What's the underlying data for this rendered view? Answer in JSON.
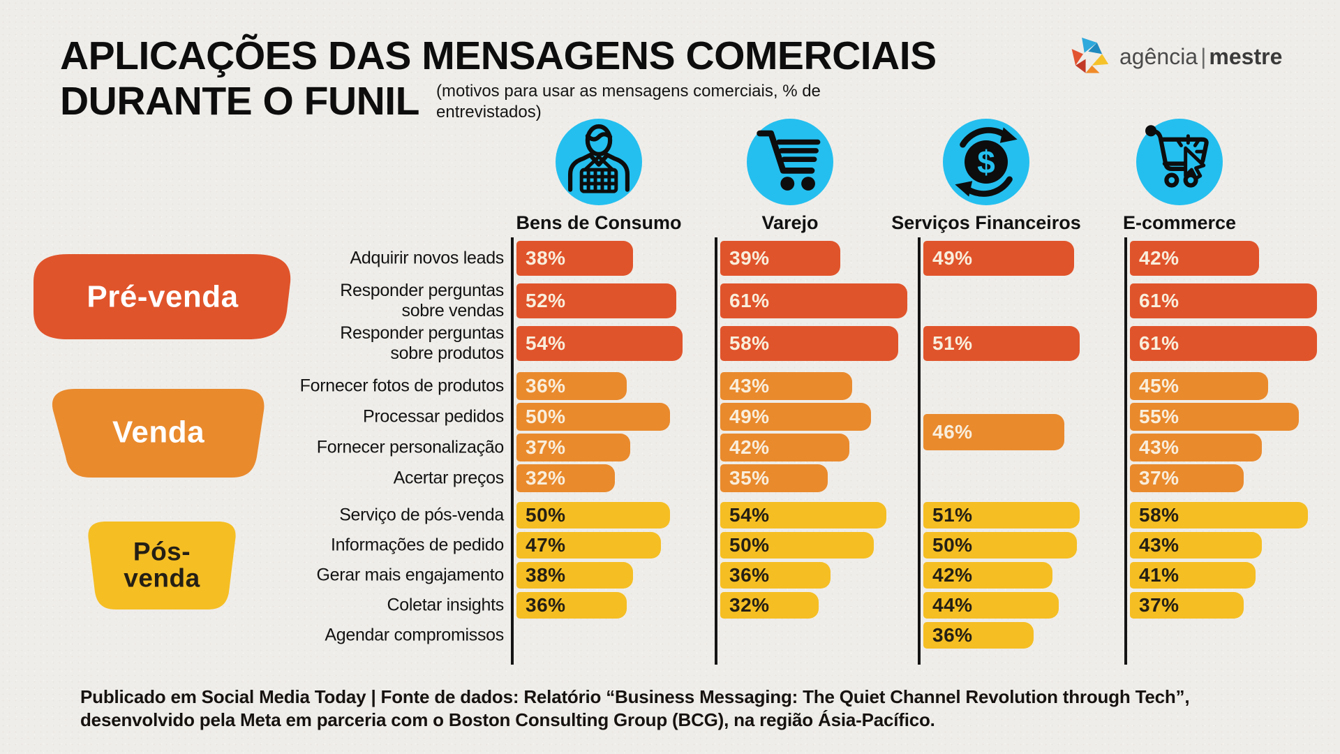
{
  "header": {
    "title_line1": "APLICAÇÕES DAS MENSAGENS COMERCIAIS",
    "title_line2": "DURANTE O FUNIL",
    "subtitle": "(motivos para usar as mensagens comerciais, % de entrevistados)"
  },
  "logo": {
    "name_regular": "agência",
    "separator": "|",
    "name_bold": "mestre"
  },
  "footer": {
    "line1": "Publicado em Social Media Today | Fonte de dados: Relatório “Business Messaging: The Quiet Channel Revolution through Tech”,",
    "line2": "desenvolvido pela Meta em parceria com o Boston Consulting Group (BCG), na região Ásia-Pacífico."
  },
  "colors": {
    "background": "#EFEDE9",
    "pre_venda": "#E0542B",
    "venda": "#E98A2D",
    "pos_venda": "#F5BE23",
    "icon_circle": "#24BFEF",
    "axis": "#141414",
    "title_text": "#0D0D0D"
  },
  "chart_data": {
    "type": "bar",
    "orientation": "horizontal",
    "unit": "%",
    "value_range": [
      0,
      100
    ],
    "categories": [
      {
        "label": "Bens de Consumo",
        "icon": "person-basket-icon"
      },
      {
        "label": "Varejo",
        "icon": "shopping-cart-icon"
      },
      {
        "label": "Serviços Financeiros",
        "icon": "dollar-cycle-icon"
      },
      {
        "label": "E-commerce",
        "icon": "cart-click-icon"
      }
    ],
    "sections": [
      {
        "id": "pre",
        "label": "Pré-venda",
        "label_lines": [
          "Pré-venda"
        ],
        "color": "#E0542B",
        "text_color": "#FFFFFF",
        "value_text_color": "#F9EEDC"
      },
      {
        "id": "venda",
        "label": "Venda",
        "label_lines": [
          "Venda"
        ],
        "color": "#E98A2D",
        "text_color": "#FFFFFF",
        "value_text_color": "#F9EEDC"
      },
      {
        "id": "pos",
        "label": "Pós-venda",
        "label_lines": [
          "Pós-",
          "venda"
        ],
        "color": "#F5BE23",
        "text_color": "#241F15",
        "value_text_color": "#241F15"
      }
    ],
    "rows": [
      {
        "label_lines": [
          "Adquirir novos leads"
        ],
        "section": "pre",
        "values": [
          38,
          39,
          49,
          42
        ]
      },
      {
        "label_lines": [
          "Responder perguntas",
          "sobre vendas"
        ],
        "section": "pre",
        "values": [
          52,
          61,
          null,
          61
        ]
      },
      {
        "label_lines": [
          "Responder perguntas",
          "sobre produtos"
        ],
        "section": "pre",
        "values": [
          54,
          58,
          51,
          61
        ]
      },
      {
        "label_lines": [
          "Fornecer fotos de produtos"
        ],
        "section": "venda",
        "values": [
          36,
          43,
          null,
          45
        ]
      },
      {
        "label_lines": [
          "Processar pedidos"
        ],
        "section": "venda",
        "values": [
          50,
          49,
          null,
          55
        ]
      },
      {
        "label_lines": [
          "Fornecer personalização"
        ],
        "section": "venda",
        "values": [
          37,
          42,
          null,
          43
        ]
      },
      {
        "label_lines": [
          "Acertar preços"
        ],
        "section": "venda",
        "values": [
          32,
          35,
          null,
          37
        ]
      },
      {
        "label_lines": [
          "Serviço de pós-venda"
        ],
        "section": "pos",
        "values": [
          50,
          54,
          51,
          58
        ]
      },
      {
        "label_lines": [
          "Informações de pedido"
        ],
        "section": "pos",
        "values": [
          47,
          50,
          50,
          43
        ]
      },
      {
        "label_lines": [
          "Gerar mais engajamento"
        ],
        "section": "pos",
        "values": [
          38,
          36,
          42,
          41
        ]
      },
      {
        "label_lines": [
          "Coletar insights"
        ],
        "section": "pos",
        "values": [
          36,
          32,
          44,
          37
        ]
      },
      {
        "label_lines": [
          "Agendar compromissos"
        ],
        "section": "pos",
        "values": [
          null,
          null,
          36,
          null
        ]
      }
    ],
    "extra_bars": [
      {
        "category_index": 2,
        "section": "venda",
        "value": 46,
        "between_rows": [
          "Processar pedidos",
          "Fornecer personalização"
        ]
      }
    ]
  }
}
